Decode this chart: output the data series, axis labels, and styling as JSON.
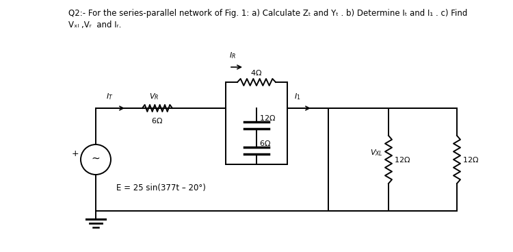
{
  "bg_color": "#ffffff",
  "title_line1": "Q2:- For the series-parallel network of Fig. 1: a) Calculate Zₜ and Yₜ . b) Determine Iₜ and I₁ . c) Find",
  "title_line2": "Vₓₗ ,Vᵣ  and Iᵣ.",
  "equation": "E = 25 sin(377t – 20°)",
  "R_top_label": "4 Ω",
  "R_series_label": "6 Ω",
  "C_top_label": "12 Ω",
  "C_bot_label": "6 Ω",
  "R_right1_label": "12 Ω",
  "R_right2_label": "12 Ω",
  "IR_label": "Iᵣ",
  "IT_label": "Iₜ",
  "VR_label": "Vᵣ",
  "I1_label": "I₁",
  "VXL_label": "Vₓₗ"
}
